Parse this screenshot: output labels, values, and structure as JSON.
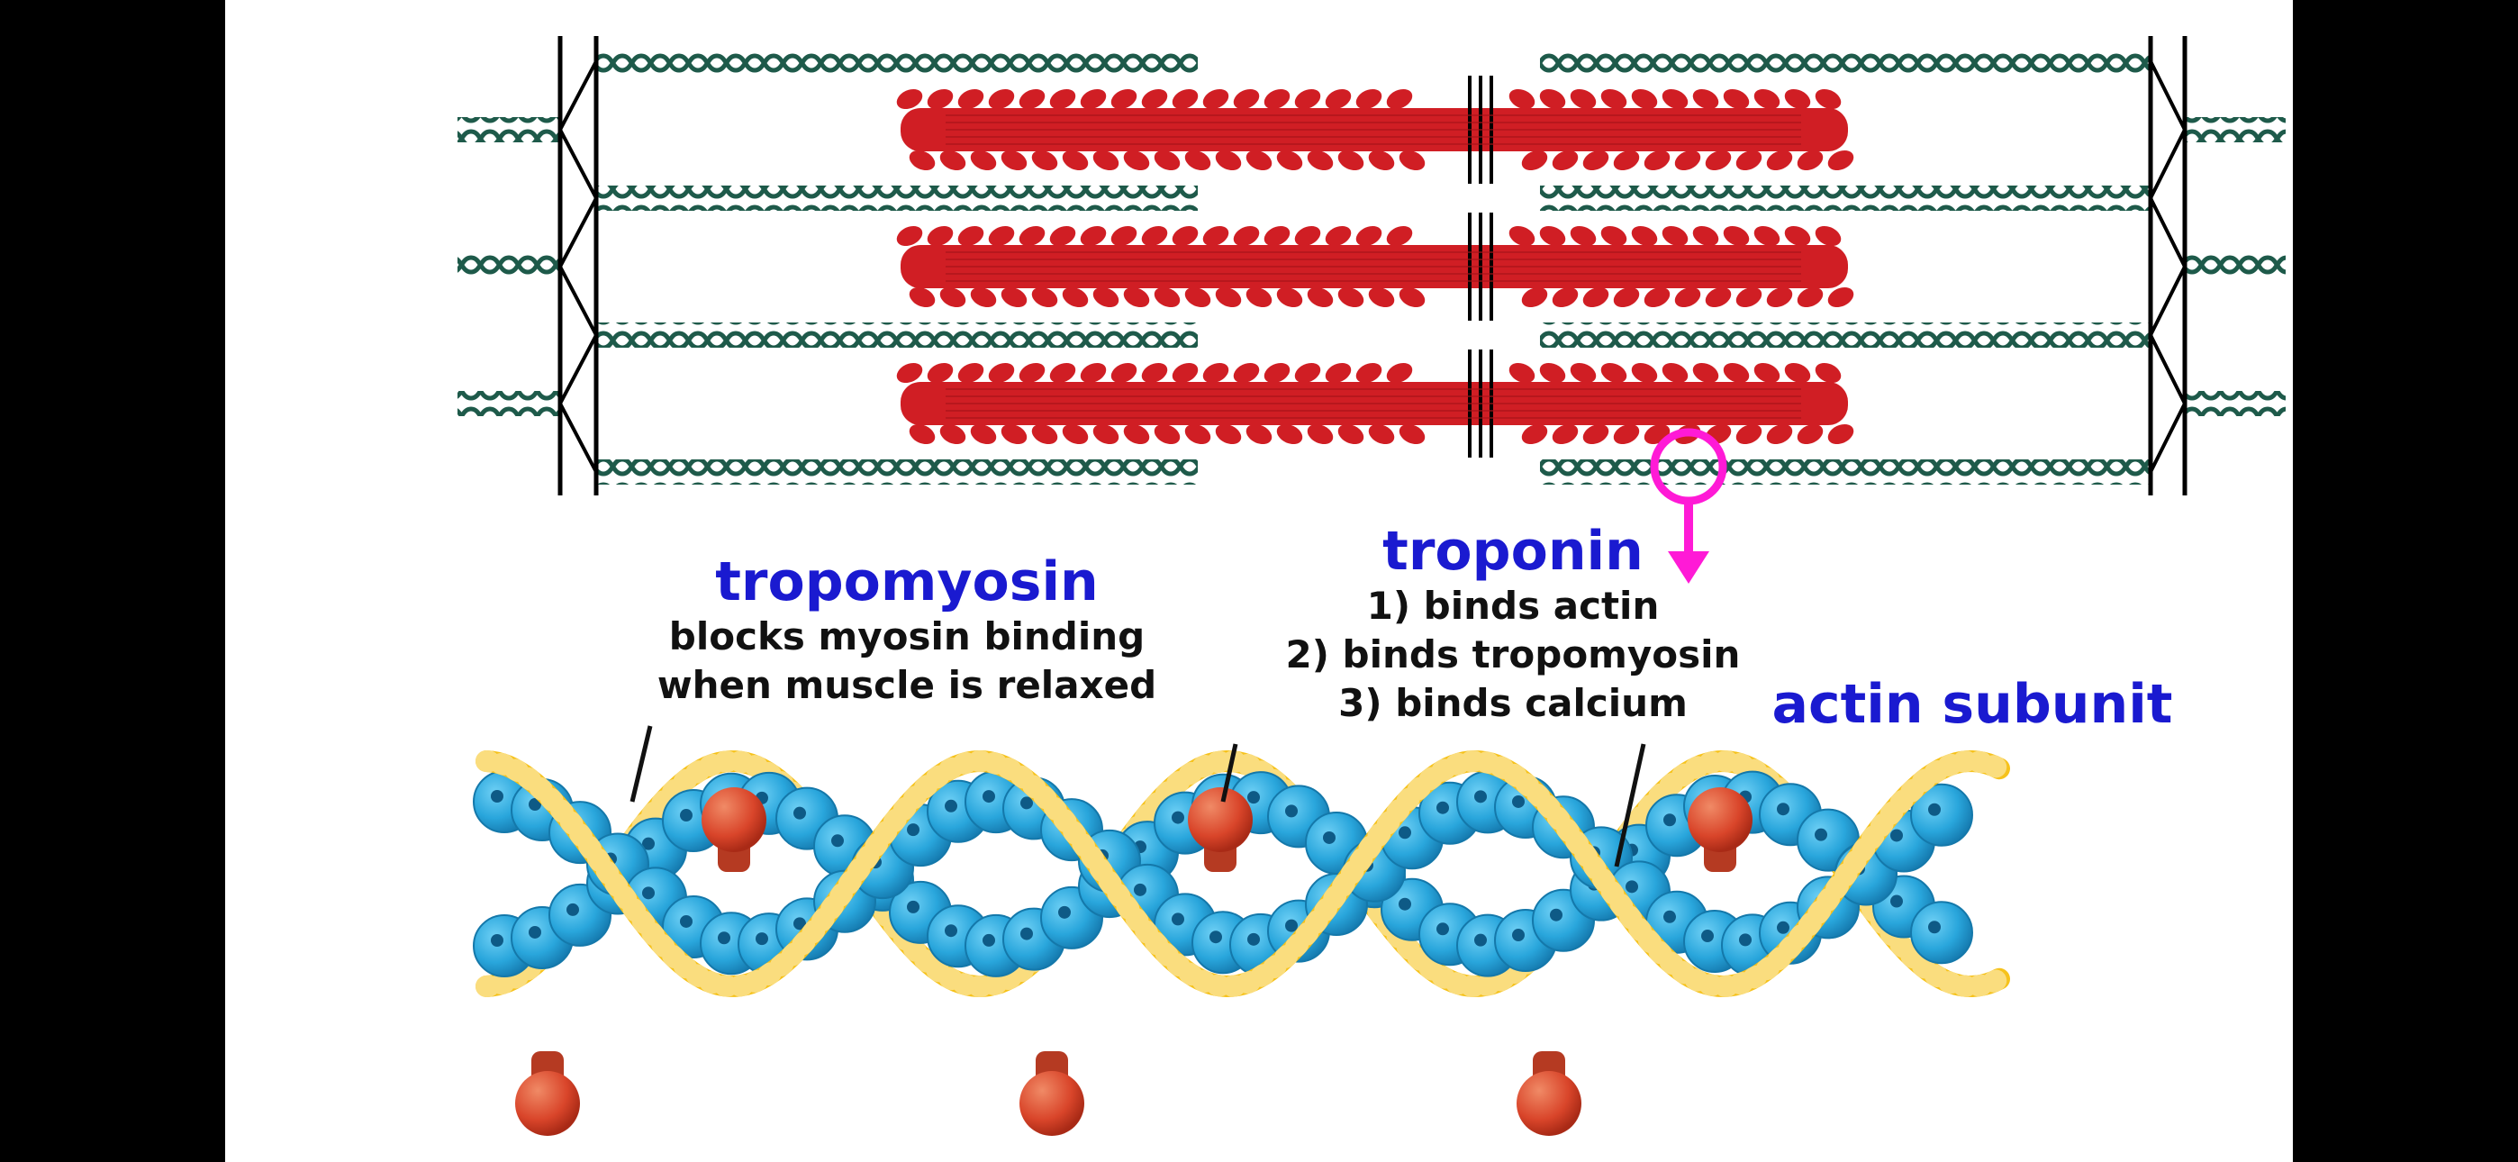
{
  "labels": {
    "tropomyosin": {
      "title": "tropomyosin",
      "lines": [
        "blocks myosin binding",
        "when muscle is relaxed"
      ]
    },
    "troponin": {
      "title": "troponin",
      "lines": [
        "1) binds actin",
        "2) binds tropomyosin",
        "3) binds calcium"
      ]
    },
    "actin": {
      "title": "actin subunit"
    }
  },
  "colors": {
    "page_background": "#000000",
    "panel": "#ffffff",
    "thin_filament": "#1e5a4a",
    "myosin": "#d01e24",
    "z_disc": "#000000",
    "magnifier": "#ff1ad6",
    "actin_subunit": "#29a6dc",
    "tropomyosin_strand": "#f6c21b",
    "troponin": "#d9452a",
    "label_title": "#1a1ad0",
    "label_text": "#111111"
  },
  "structure": {
    "thick_filaments": 3,
    "thin_filament_rows": 4
  }
}
